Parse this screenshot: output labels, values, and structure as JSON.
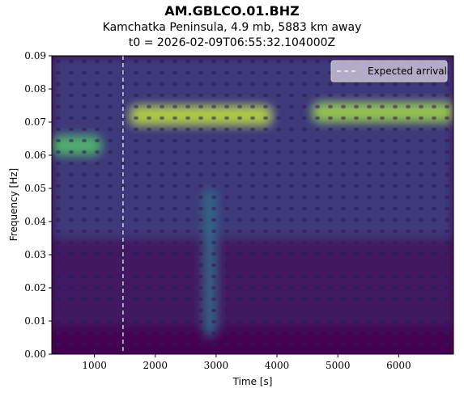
{
  "header": {
    "title": "AM.GBLCO.01.BHZ",
    "subtitle": "Kamchatka Peninsula, 4.9 mb, 5883 km away",
    "t0_line": "t0 = 2026-02-09T06:55:32.104000Z"
  },
  "chart_data": {
    "type": "heatmap",
    "xlabel": "Time [s]",
    "ylabel": "Frequency [Hz]",
    "xlim": [
      300,
      6900
    ],
    "ylim": [
      0.0,
      0.09
    ],
    "x_ticks": [
      1000,
      2000,
      3000,
      4000,
      5000,
      6000
    ],
    "x_tick_labels": [
      "1000",
      "2000",
      "3000",
      "4000",
      "5000",
      "6000"
    ],
    "y_ticks": [
      0.0,
      0.01,
      0.02,
      0.03,
      0.04,
      0.05,
      0.06,
      0.07,
      0.08,
      0.09
    ],
    "y_tick_labels": [
      "0.00",
      "0.01",
      "0.02",
      "0.03",
      "0.04",
      "0.05",
      "0.06",
      "0.07",
      "0.08",
      "0.09"
    ],
    "colormap": "viridis",
    "expected_arrival_x": 1470,
    "legend": {
      "entries": [
        "Expected arrival"
      ],
      "placement": "top-right",
      "line_style": "dashed",
      "line_color": "#ffffff"
    },
    "energy_features": [
      {
        "description": "strong band",
        "t_start": 1600,
        "t_end": 3900,
        "f_center": 0.072,
        "intensity": 0.9
      },
      {
        "description": "strong band",
        "t_start": 4600,
        "t_end": 6900,
        "f_center": 0.073,
        "intensity": 0.85
      },
      {
        "description": "early energy",
        "t_start": 300,
        "t_end": 1100,
        "f_center": 0.063,
        "intensity": 0.7
      },
      {
        "description": "vertical stripe",
        "t_start": 2800,
        "t_end": 3000,
        "f_center": 0.03,
        "intensity": 0.35
      }
    ]
  }
}
